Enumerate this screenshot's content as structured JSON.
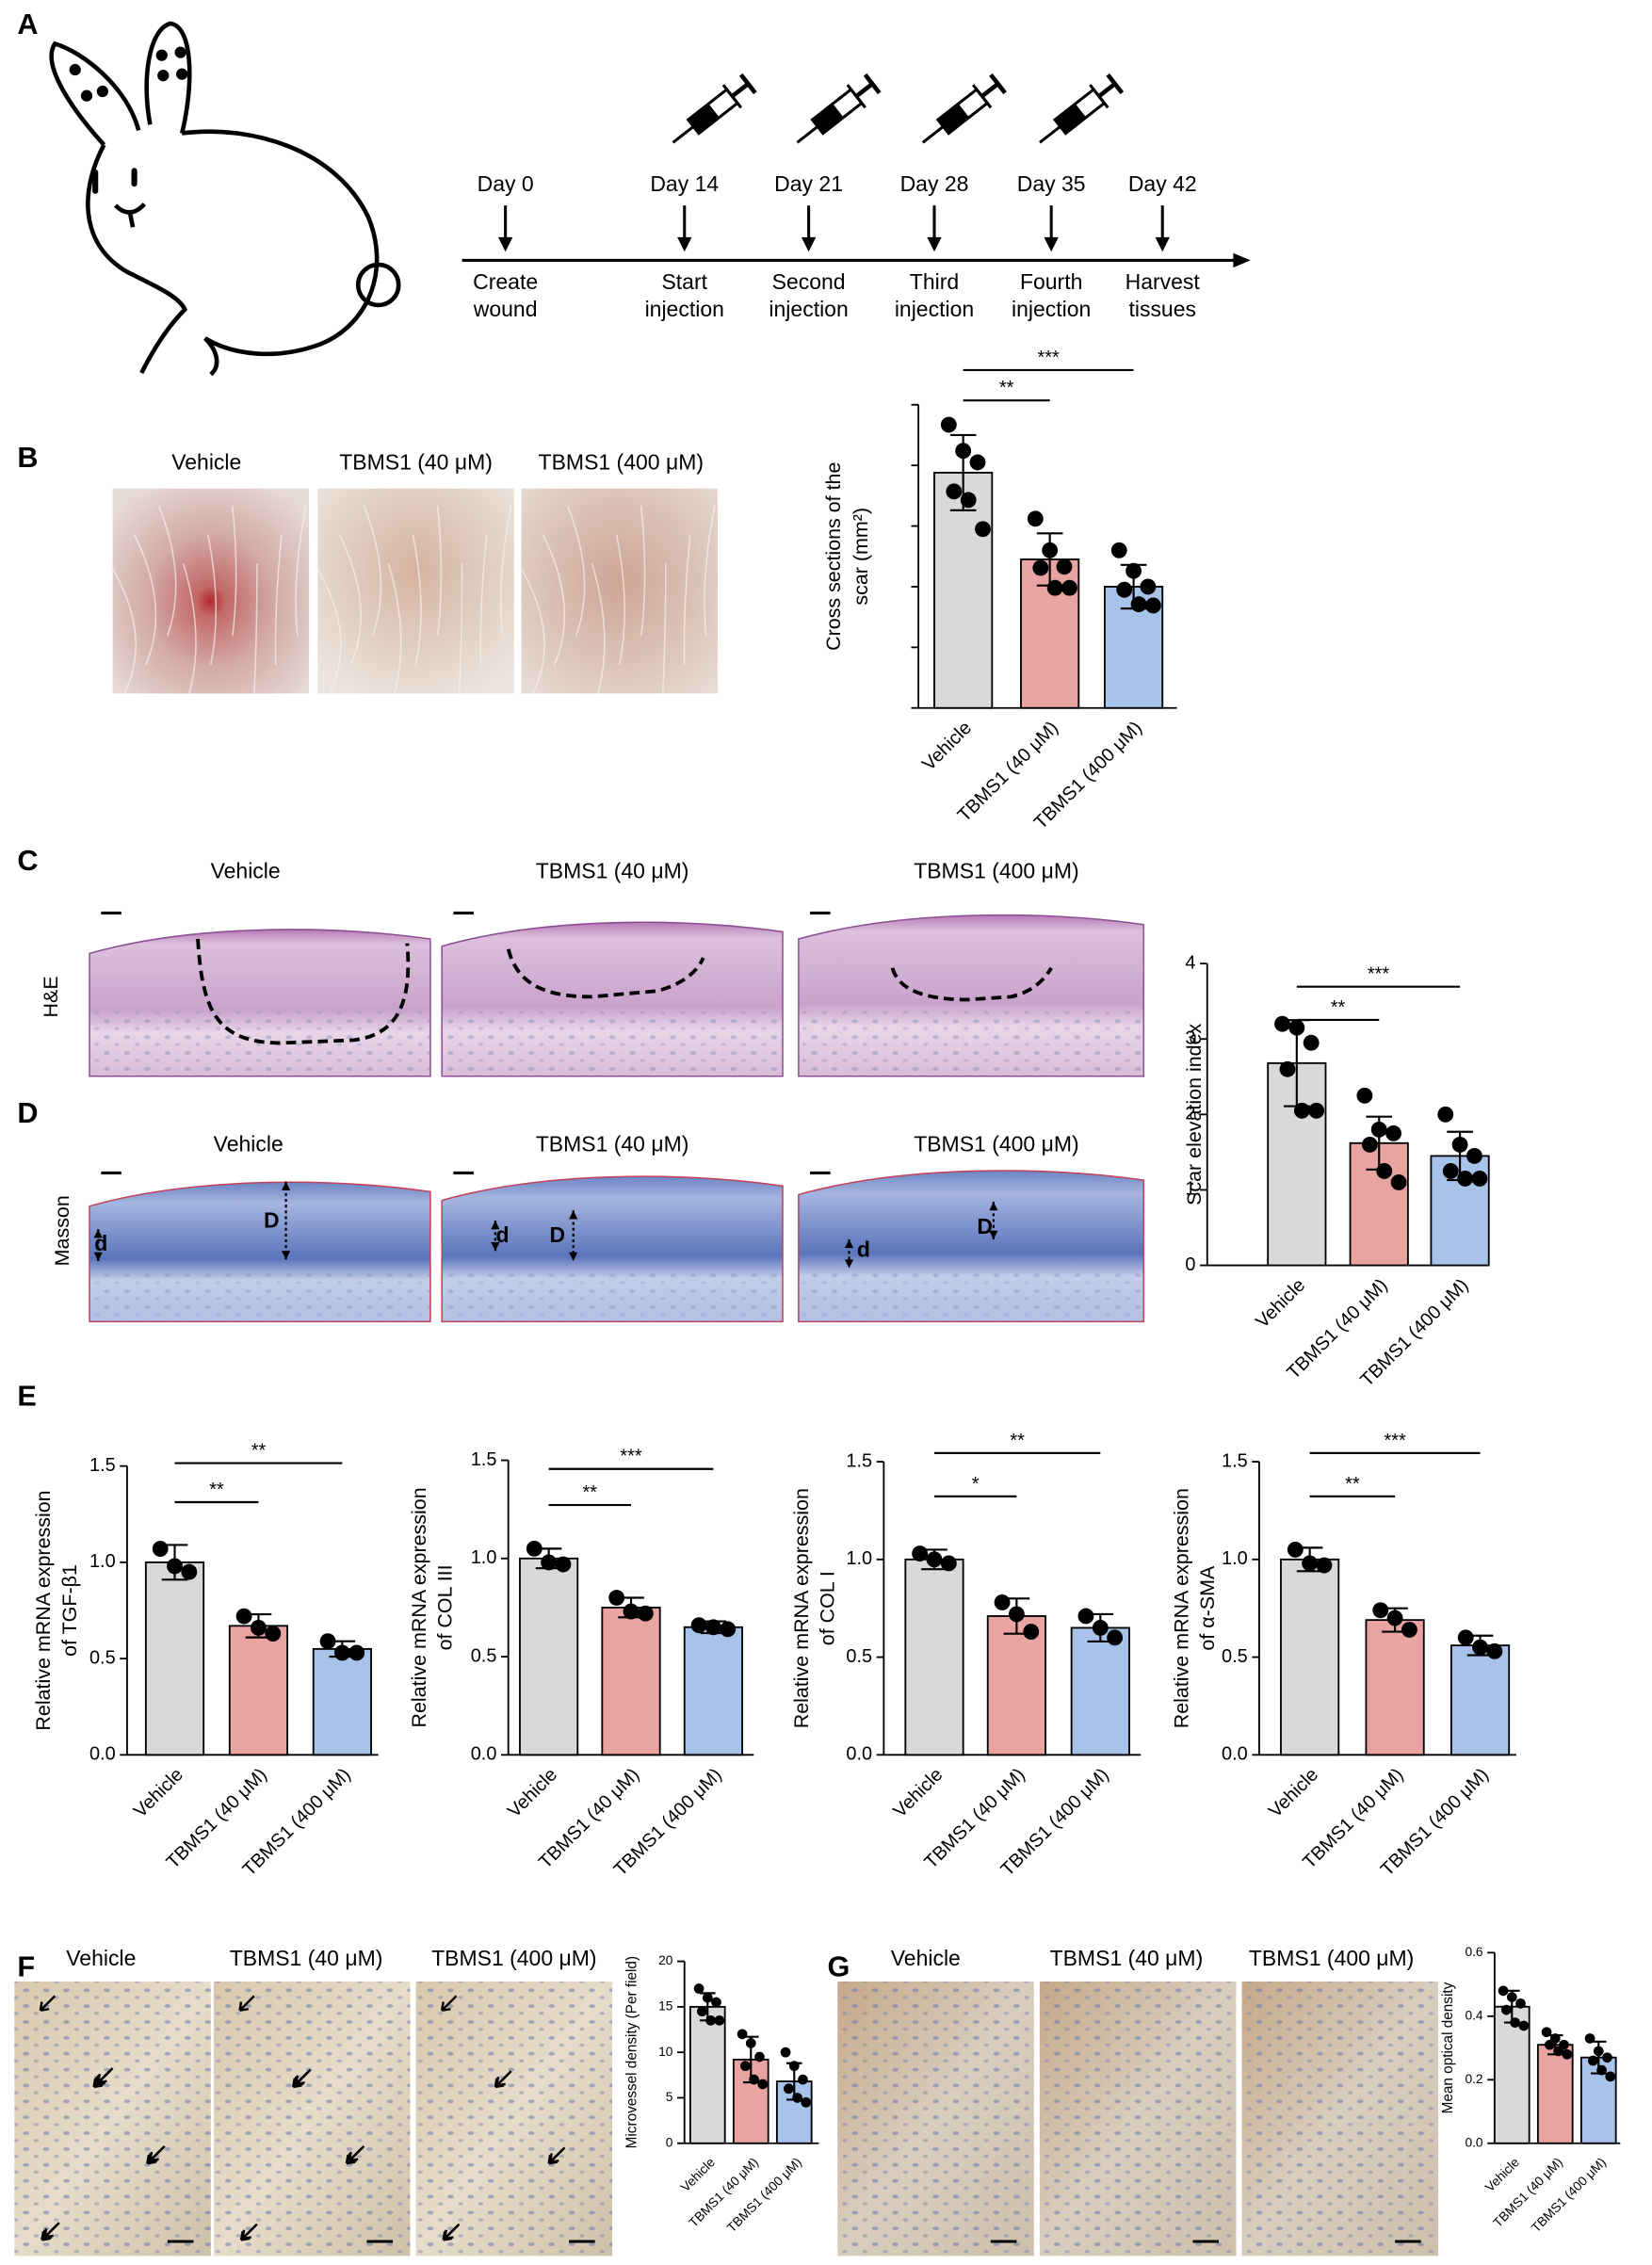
{
  "panel_labels": [
    "A",
    "B",
    "C",
    "D",
    "E",
    "F",
    "G"
  ],
  "timeline": {
    "days": [
      "Day 0",
      "Day 14",
      "Day 21",
      "Day 28",
      "Day 35",
      "Day 42"
    ],
    "events": [
      [
        "Create",
        "wound"
      ],
      [
        "Start",
        "injection"
      ],
      [
        "Second",
        "injection"
      ],
      [
        "Third",
        "injection"
      ],
      [
        "Fourth",
        "injection"
      ],
      [
        "Harvest",
        "tissues"
      ]
    ]
  },
  "panel_b": {
    "captions": [
      "Vehicle",
      "TBMS1 (40 μM)",
      "TBMS1 (400 μM)"
    ]
  },
  "panel_c": {
    "row_label": "H&E",
    "captions": [
      "Vehicle",
      "TBMS1 (40 μM)",
      "TBMS1 (400 μM)"
    ]
  },
  "panel_d": {
    "row_label": "Masson",
    "captions": [
      "Vehicle",
      "TBMS1 (40 μM)",
      "TBMS1 (400 μM)"
    ],
    "markers": [
      "d",
      "D"
    ]
  },
  "panel_f": {
    "captions": [
      "Vehicle",
      "TBMS1 (40 μM)",
      "TBMS1 (400 μM)"
    ]
  },
  "panel_g": {
    "captions": [
      "Vehicle",
      "TBMS1 (40 μM)",
      "TBMS1 (400 μM)"
    ]
  },
  "chart_data": [
    {
      "type": "bar",
      "ylabel": [
        "Cross sections of the",
        "scar (mm²)"
      ],
      "categories": [
        "Vehicle",
        "TBMS1 (40 μM)",
        "TBMS1 (400 μM)"
      ],
      "colors": [
        "#d9d9d9",
        "#e9a3a1",
        "#a8c3ea"
      ],
      "values": [
        3.88,
        2.45,
        2.0
      ],
      "errors": [
        0.62,
        0.43,
        0.36
      ],
      "points": [
        [
          4.67,
          4.24,
          4.05,
          3.57,
          3.43,
          2.95
        ],
        [
          3.12,
          2.6,
          2.33,
          2.31,
          1.98,
          1.98
        ],
        [
          2.6,
          2.26,
          2.0,
          1.95,
          1.71,
          1.69
        ]
      ],
      "ylim": [
        0,
        5
      ],
      "yticks": [
        0,
        1,
        2,
        3,
        4,
        5
      ],
      "tick_labels": false,
      "significance": [
        {
          "from": 0,
          "to": 1,
          "label": "**"
        },
        {
          "from": 0,
          "to": 2,
          "label": "***"
        }
      ]
    },
    {
      "type": "bar",
      "ylabel": [
        "Scar elevation index"
      ],
      "categories": [
        "Vehicle",
        "TBMS1 (40 μM)",
        "TBMS1 (400 μM)"
      ],
      "colors": [
        "#d9d9d9",
        "#e9a3a1",
        "#a8c3ea"
      ],
      "values": [
        2.68,
        1.62,
        1.45
      ],
      "errors": [
        0.57,
        0.35,
        0.32
      ],
      "points": [
        [
          3.2,
          3.15,
          2.95,
          2.6,
          2.05,
          2.05
        ],
        [
          2.25,
          1.8,
          1.75,
          1.6,
          1.25,
          1.1
        ],
        [
          2.0,
          1.6,
          1.45,
          1.25,
          1.15,
          1.15
        ]
      ],
      "ylim": [
        0,
        4
      ],
      "yticks": [
        0,
        1,
        2,
        3,
        4
      ],
      "tick_labels": true,
      "significance": [
        {
          "from": 0,
          "to": 1,
          "label": "**"
        },
        {
          "from": 0,
          "to": 2,
          "label": "***"
        }
      ]
    },
    {
      "type": "bar",
      "ylabel": [
        "Relative mRNA expression",
        "of TGF-β1"
      ],
      "categories": [
        "Vehicle",
        "TBMS1 (40 μM)",
        "TBMS1 (400 μM)"
      ],
      "colors": [
        "#d9d9d9",
        "#e9a3a1",
        "#a8c3ea"
      ],
      "values": [
        1.0,
        0.67,
        0.55
      ],
      "errors": [
        0.09,
        0.06,
        0.04
      ],
      "points": [
        [
          1.07,
          0.98,
          0.95
        ],
        [
          0.72,
          0.66,
          0.63
        ],
        [
          0.59,
          0.53,
          0.53
        ]
      ],
      "ylim": [
        0,
        1.5
      ],
      "yticks": [
        {
          "value": 0,
          "label": "0.0"
        },
        0.5,
        {
          "value": 1,
          "label": "1.0"
        },
        1.5
      ],
      "tick_labels": true,
      "significance": [
        {
          "from": 0,
          "to": 1,
          "label": "**"
        },
        {
          "from": 0,
          "to": 2,
          "label": "**"
        }
      ]
    },
    {
      "type": "bar",
      "ylabel": [
        "Relative mRNA expression",
        "of COL III"
      ],
      "categories": [
        "Vehicle",
        "TBMS1 (40 μM)",
        "TBMS1 (400 μM)"
      ],
      "colors": [
        "#d9d9d9",
        "#e9a3a1",
        "#a8c3ea"
      ],
      "values": [
        1.0,
        0.75,
        0.65
      ],
      "errors": [
        0.05,
        0.05,
        0.03
      ],
      "points": [
        [
          1.05,
          0.98,
          0.97
        ],
        [
          0.8,
          0.73,
          0.72
        ],
        [
          0.66,
          0.65,
          0.64
        ]
      ],
      "ylim": [
        0,
        1.5
      ],
      "yticks": [
        {
          "value": 0,
          "label": "0.0"
        },
        0.5,
        {
          "value": 1,
          "label": "1.0"
        },
        1.5
      ],
      "tick_labels": true,
      "significance": [
        {
          "from": 0,
          "to": 1,
          "label": "**"
        },
        {
          "from": 0,
          "to": 2,
          "label": "***"
        }
      ]
    },
    {
      "type": "bar",
      "ylabel": [
        "Relative mRNA expression",
        "of COL I"
      ],
      "categories": [
        "Vehicle",
        "TBMS1 (40 μM)",
        "TBMS1 (400 μM)"
      ],
      "colors": [
        "#d9d9d9",
        "#e9a3a1",
        "#a8c3ea"
      ],
      "values": [
        1.0,
        0.71,
        0.65
      ],
      "errors": [
        0.05,
        0.09,
        0.07
      ],
      "points": [
        [
          1.03,
          1.0,
          0.98
        ],
        [
          0.78,
          0.72,
          0.63
        ],
        [
          0.71,
          0.65,
          0.6
        ]
      ],
      "ylim": [
        0,
        1.5
      ],
      "yticks": [
        {
          "value": 0,
          "label": "0.0"
        },
        0.5,
        {
          "value": 1,
          "label": "1.0"
        },
        1.5
      ],
      "tick_labels": true,
      "significance": [
        {
          "from": 0,
          "to": 1,
          "label": "*"
        },
        {
          "from": 0,
          "to": 2,
          "label": "**"
        }
      ]
    },
    {
      "type": "bar",
      "ylabel": [
        "Relative mRNA expression",
        "of α-SMA"
      ],
      "categories": [
        "Vehicle",
        "TBMS1 (40 μM)",
        "TBMS1 (400 μM)"
      ],
      "colors": [
        "#d9d9d9",
        "#e9a3a1",
        "#a8c3ea"
      ],
      "values": [
        1.0,
        0.69,
        0.56
      ],
      "errors": [
        0.06,
        0.06,
        0.05
      ],
      "points": [
        [
          1.05,
          0.98,
          0.97
        ],
        [
          0.74,
          0.7,
          0.64
        ],
        [
          0.6,
          0.55,
          0.53
        ]
      ],
      "ylim": [
        0,
        1.5
      ],
      "yticks": [
        {
          "value": 0,
          "label": "0.0"
        },
        0.5,
        {
          "value": 1,
          "label": "1.0"
        },
        1.5
      ],
      "tick_labels": true,
      "significance": [
        {
          "from": 0,
          "to": 1,
          "label": "**"
        },
        {
          "from": 0,
          "to": 2,
          "label": "***"
        }
      ]
    },
    {
      "type": "bar",
      "ylabel": [
        "Microvessel density (Per field)"
      ],
      "categories": [
        "Vehicle",
        "TBMS1 (40 μM)",
        "TBMS1 (400 μM)"
      ],
      "colors": [
        "#d9d9d9",
        "#e9a3a1",
        "#a8c3ea"
      ],
      "values": [
        15,
        9.2,
        6.8
      ],
      "errors": [
        1.5,
        2.5,
        2.0
      ],
      "points": [
        [
          17,
          16,
          15.5,
          14.5,
          13.5,
          13.5
        ],
        [
          12,
          11,
          9.5,
          8.5,
          7,
          6.5
        ],
        [
          10,
          8.5,
          7,
          6,
          5,
          4.5
        ]
      ],
      "ylim": [
        0,
        20
      ],
      "yticks": [
        0,
        5,
        10,
        15,
        20
      ],
      "tick_labels": true,
      "significance": []
    },
    {
      "type": "bar",
      "ylabel": [
        "Mean optical density"
      ],
      "categories": [
        "Vehicle",
        "TBMS1 (40 μM)",
        "TBMS1 (400 μM)"
      ],
      "colors": [
        "#d9d9d9",
        "#e9a3a1",
        "#a8c3ea"
      ],
      "values": [
        0.43,
        0.31,
        0.27
      ],
      "errors": [
        0.05,
        0.03,
        0.05
      ],
      "points": [
        [
          0.48,
          0.46,
          0.44,
          0.42,
          0.38,
          0.37
        ],
        [
          0.35,
          0.33,
          0.31,
          0.31,
          0.29,
          0.28
        ],
        [
          0.33,
          0.29,
          0.27,
          0.26,
          0.23,
          0.21
        ]
      ],
      "ylim": [
        0,
        0.6
      ],
      "yticks": [
        {
          "value": 0,
          "label": "0.0"
        },
        0.2,
        0.4,
        0.6
      ],
      "tick_labels": true,
      "significance": []
    }
  ]
}
